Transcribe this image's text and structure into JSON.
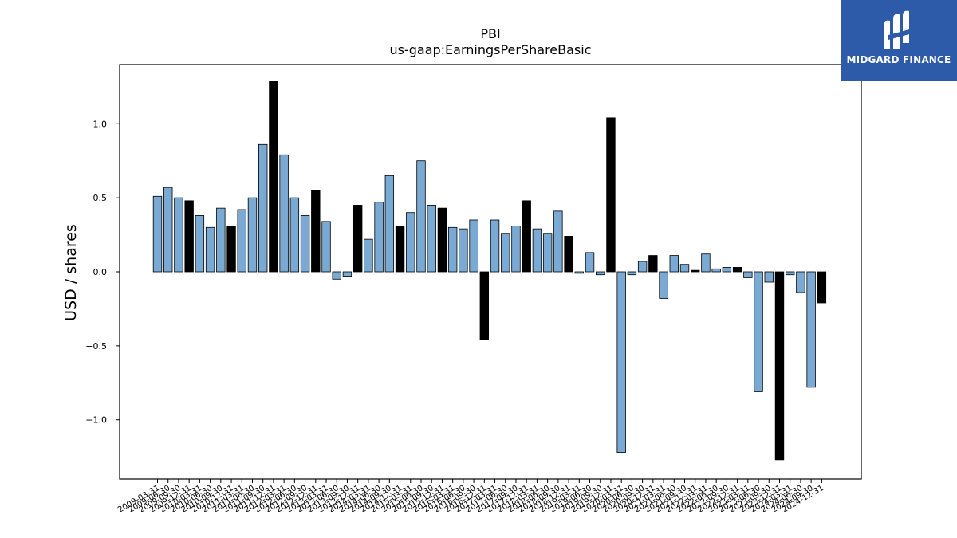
{
  "chart_data": {
    "type": "bar",
    "title": "PBI",
    "subtitle": "us-gaap:EarningsPerShareBasic",
    "ylabel": "USD / shares",
    "xlabel": "",
    "ylim": [
      -1.4,
      1.4
    ],
    "yticks": [
      -1.0,
      -0.5,
      0.0,
      0.5,
      1.0
    ],
    "ytick_labels": [
      "−1.0",
      "−0.5",
      "0.0",
      "0.5",
      "1.0"
    ],
    "grid": false,
    "legend": "none",
    "colors": {
      "quarterly": "#7aaad3",
      "annual": "#000000",
      "edge": "#000000"
    },
    "categories": [
      "2009-03-31",
      "2009-06-30",
      "2009-09-30",
      "2009-12-31",
      "2010-03-31",
      "2010-06-30",
      "2010-09-30",
      "2010-12-31",
      "2011-03-31",
      "2011-06-30",
      "2011-09-30",
      "2011-12-31",
      "2012-03-31",
      "2012-06-30",
      "2012-09-30",
      "2012-12-31",
      "2013-03-31",
      "2013-06-30",
      "2013-09-30",
      "2013-12-31",
      "2014-03-31",
      "2014-06-30",
      "2014-09-30",
      "2014-12-31",
      "2015-03-31",
      "2015-06-30",
      "2015-09-30",
      "2015-12-31",
      "2016-03-31",
      "2016-06-30",
      "2016-09-30",
      "2016-12-31",
      "2017-03-31",
      "2017-06-30",
      "2017-09-30",
      "2017-12-31",
      "2018-03-31",
      "2018-06-30",
      "2018-09-30",
      "2018-12-31",
      "2019-03-31",
      "2019-06-30",
      "2019-09-30",
      "2019-12-31",
      "2020-03-31",
      "2020-06-30",
      "2020-09-30",
      "2020-12-31",
      "2021-03-31",
      "2021-06-30",
      "2021-09-30",
      "2021-12-31",
      "2022-03-31",
      "2022-06-30",
      "2022-09-30",
      "2022-12-31",
      "2023-03-31",
      "2023-06-30",
      "2023-09-30",
      "2023-12-31",
      "2024-03-31",
      "2024-06-30",
      "2024-09-30",
      "2024-12-31"
    ],
    "values": [
      0.51,
      0.57,
      0.5,
      0.48,
      0.38,
      0.3,
      0.43,
      0.31,
      0.42,
      0.5,
      0.86,
      1.29,
      0.79,
      0.5,
      0.38,
      0.55,
      0.34,
      -0.05,
      -0.03,
      0.45,
      0.22,
      0.47,
      0.65,
      0.31,
      0.4,
      0.75,
      0.45,
      0.43,
      0.3,
      0.29,
      0.35,
      -0.46,
      0.35,
      0.26,
      0.31,
      0.48,
      0.29,
      0.26,
      0.41,
      0.24,
      -0.01,
      0.13,
      -0.02,
      1.04,
      -1.22,
      -0.02,
      0.07,
      0.11,
      -0.18,
      0.11,
      0.05,
      0.01,
      0.12,
      0.02,
      0.03,
      0.03,
      -0.04,
      -0.81,
      -0.07,
      -1.27,
      -0.02,
      -0.14,
      -0.78,
      -0.21
    ],
    "annual_flags": [
      false,
      false,
      false,
      true,
      false,
      false,
      false,
      true,
      false,
      false,
      false,
      true,
      false,
      false,
      false,
      true,
      false,
      false,
      false,
      true,
      false,
      false,
      false,
      true,
      false,
      false,
      false,
      true,
      false,
      false,
      false,
      true,
      false,
      false,
      false,
      true,
      false,
      false,
      false,
      true,
      false,
      false,
      false,
      true,
      false,
      false,
      false,
      true,
      false,
      false,
      false,
      true,
      false,
      false,
      false,
      true,
      false,
      false,
      false,
      true,
      false,
      false,
      false,
      true
    ]
  },
  "logo": {
    "text": "MIDGARD FINANCE"
  }
}
